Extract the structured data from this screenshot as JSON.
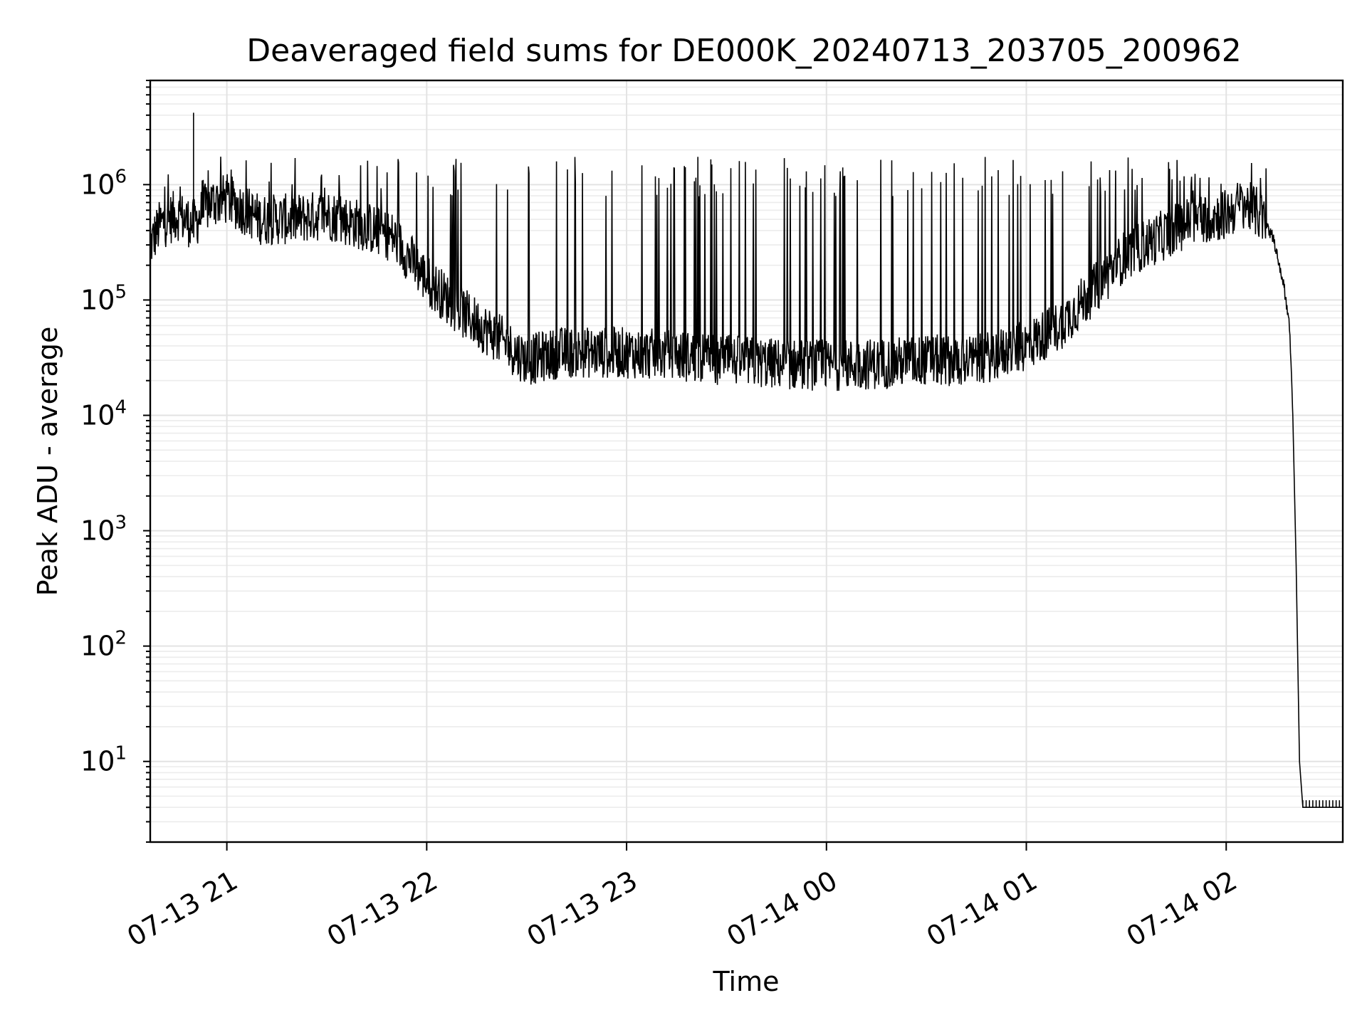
{
  "chart_data": {
    "type": "line",
    "title": "Deaveraged field sums for DE000K_20240713_203705_200962",
    "xlabel": "Time",
    "ylabel": "Peak ADU - average",
    "yscale": "log",
    "ylim": [
      2,
      8000000
    ],
    "xlim": [
      "2024-07-13 20:37",
      "2024-07-14 02:35"
    ],
    "xticks": [
      {
        "time": "2024-07-13 21:00",
        "label": "07-13 21"
      },
      {
        "time": "2024-07-13 22:00",
        "label": "07-13 22"
      },
      {
        "time": "2024-07-13 23:00",
        "label": "07-13 23"
      },
      {
        "time": "2024-07-14 00:00",
        "label": "07-14 00"
      },
      {
        "time": "2024-07-14 01:00",
        "label": "07-14 01"
      },
      {
        "time": "2024-07-14 02:00",
        "label": "07-14 02"
      }
    ],
    "yticks": [
      {
        "value": 10,
        "base": "10",
        "exp": "1"
      },
      {
        "value": 100,
        "base": "10",
        "exp": "2"
      },
      {
        "value": 1000,
        "base": "10",
        "exp": "3"
      },
      {
        "value": 10000,
        "base": "10",
        "exp": "4"
      },
      {
        "value": 100000,
        "base": "10",
        "exp": "5"
      },
      {
        "value": 1000000,
        "base": "10",
        "exp": "6"
      }
    ],
    "grid": true,
    "line_color": "#000000",
    "series": [
      {
        "x": [
          "2024-07-13 20:37",
          "2024-07-13 20:40",
          "2024-07-13 20:45",
          "2024-07-13 20:50",
          "2024-07-13 20:55",
          "2024-07-13 21:00",
          "2024-07-13 21:10",
          "2024-07-13 21:20",
          "2024-07-13 21:30",
          "2024-07-13 21:40",
          "2024-07-13 21:50",
          "2024-07-13 22:00",
          "2024-07-13 22:10",
          "2024-07-13 22:20",
          "2024-07-13 22:30",
          "2024-07-13 22:40",
          "2024-07-13 22:50",
          "2024-07-13 23:00",
          "2024-07-13 23:15",
          "2024-07-13 23:30",
          "2024-07-13 23:45",
          "2024-07-14 00:00",
          "2024-07-14 00:15",
          "2024-07-14 00:30",
          "2024-07-14 00:45",
          "2024-07-14 01:00",
          "2024-07-14 01:10",
          "2024-07-14 01:20",
          "2024-07-14 01:30",
          "2024-07-14 01:40",
          "2024-07-14 01:50",
          "2024-07-14 02:00",
          "2024-07-14 02:05",
          "2024-07-14 02:10",
          "2024-07-14 02:14",
          "2024-07-14 02:17",
          "2024-07-14 02:19",
          "2024-07-14 02:20",
          "2024-07-14 02:21",
          "2024-07-14 02:22",
          "2024-07-14 02:23",
          "2024-07-14 02:25",
          "2024-07-14 02:30",
          "2024-07-14 02:35"
        ],
        "y": [
          300000,
          450000,
          550000,
          450000,
          700000,
          750000,
          500000,
          500000,
          550000,
          450000,
          350000,
          150000,
          80000,
          50000,
          30000,
          35000,
          35000,
          35000,
          33000,
          30000,
          28000,
          27000,
          28000,
          30000,
          30000,
          40000,
          60000,
          120000,
          250000,
          350000,
          500000,
          550000,
          700000,
          550000,
          350000,
          150000,
          60000,
          10000,
          500,
          10,
          4,
          4,
          4,
          4
        ],
        "x_ticks_start": "2024-07-14 02:23",
        "x_ticks_end": "2024-07-14 02:35"
      }
    ]
  }
}
